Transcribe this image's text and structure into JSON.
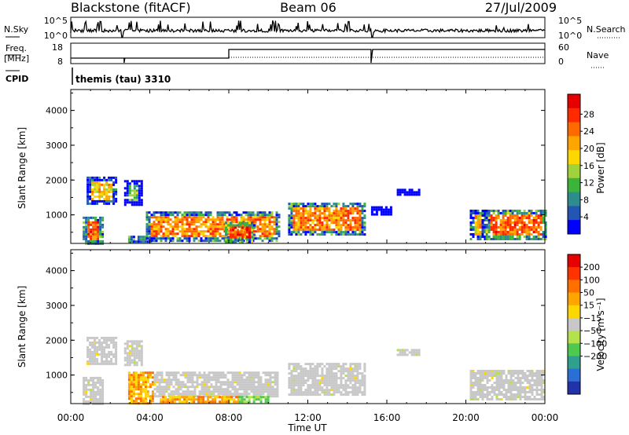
{
  "header": {
    "site": "Blackstone (fitACF)",
    "beam": "Beam 06",
    "date": "27/Jul/2009"
  },
  "param_panels": {
    "nsky_label": "N.Sky",
    "nsky_ticks": [
      "10^5",
      "10^0"
    ],
    "nsearch_label": "N.Search",
    "nsearch_ticks": [
      "10^5",
      "10^0"
    ],
    "freq_label": "Freq.",
    "freq_unit": "[MHz]",
    "freq_ticks": [
      "18",
      "8"
    ],
    "nave_label": "Nave",
    "nave_ticks": [
      "60",
      "0"
    ],
    "cpid_label": "CPID",
    "cpid_value": "themis (tau) 3310"
  },
  "chart_data": [
    {
      "type": "heatmap",
      "name": "power",
      "ylabel": "Slant Range [km]",
      "ylim": [
        180,
        4600
      ],
      "yticks": [
        "1000",
        "2000",
        "3000",
        "4000"
      ],
      "xlim_hours": [
        0,
        24
      ],
      "colorbar": {
        "label": "Power [dB]",
        "ticks": [
          "4",
          "8",
          "12",
          "16",
          "20",
          "24",
          "28"
        ],
        "colors": [
          "#0000ff",
          "#2255b4",
          "#2e8c8c",
          "#3cb43c",
          "#a0d23c",
          "#ffd700",
          "#ffa500",
          "#ff6a00",
          "#ff2a00",
          "#e60000"
        ]
      },
      "regions": [
        {
          "t0": 0.6,
          "t1": 1.6,
          "r0": 200,
          "r1": 950,
          "p": 24
        },
        {
          "t0": 0.8,
          "t1": 2.3,
          "r0": 1300,
          "r1": 2100,
          "p": 18
        },
        {
          "t0": 2.7,
          "t1": 3.6,
          "r0": 1300,
          "r1": 2000,
          "p": 12
        },
        {
          "t0": 2.9,
          "t1": 4.0,
          "r0": 200,
          "r1": 400,
          "p": 22
        },
        {
          "t0": 3.8,
          "t1": 10.5,
          "r0": 250,
          "r1": 1100,
          "p": 22
        },
        {
          "t0": 7.8,
          "t1": 9.3,
          "r0": 250,
          "r1": 800,
          "p": 26
        },
        {
          "t0": 11.0,
          "t1": 14.9,
          "r0": 450,
          "r1": 1350,
          "p": 22
        },
        {
          "t0": 15.2,
          "t1": 16.2,
          "r0": 1000,
          "r1": 1250,
          "p": 6
        },
        {
          "t0": 16.5,
          "t1": 17.6,
          "r0": 1550,
          "r1": 1750,
          "p": 6
        },
        {
          "t0": 20.2,
          "t1": 21.0,
          "r0": 300,
          "r1": 1150,
          "p": 18
        },
        {
          "t0": 21.0,
          "t1": 24.0,
          "r0": 300,
          "r1": 1150,
          "p": 24
        }
      ]
    },
    {
      "type": "heatmap",
      "name": "velocity",
      "ylabel": "Slant Range [km]",
      "ylim": [
        180,
        4600
      ],
      "yticks": [
        "1000",
        "2000",
        "3000",
        "4000"
      ],
      "xlabel": "Time UT",
      "xticks": [
        "00:00",
        "04:00",
        "08:00",
        "12:00",
        "16:00",
        "20:00",
        "00:00"
      ],
      "xlim_hours": [
        0,
        24
      ],
      "colorbar": {
        "label": "Velocity [m s⁻¹]",
        "ticks": [
          "200",
          "100",
          "50",
          "15",
          "−15",
          "−50",
          "−100",
          "−200"
        ],
        "colors": [
          "#2233aa",
          "#2b6ed6",
          "#2fa090",
          "#4fc84f",
          "#b4e24c",
          "#c8c8c8",
          "#ffd700",
          "#ffa500",
          "#ff7000",
          "#ff3300",
          "#e60000"
        ]
      },
      "regions": [
        {
          "t0": 0.6,
          "t1": 1.6,
          "r0": 200,
          "r1": 950,
          "v": 0
        },
        {
          "t0": 0.8,
          "t1": 2.3,
          "r0": 1300,
          "r1": 2100,
          "v": 0
        },
        {
          "t0": 2.7,
          "t1": 3.6,
          "r0": 1300,
          "r1": 2000,
          "v": 0
        },
        {
          "t0": 2.9,
          "t1": 4.2,
          "r0": 200,
          "r1": 1100,
          "v": -60
        },
        {
          "t0": 4.2,
          "t1": 10.5,
          "r0": 400,
          "r1": 1100,
          "v": 0
        },
        {
          "t0": 4.5,
          "t1": 8.5,
          "r0": 200,
          "r1": 400,
          "v": -80
        },
        {
          "t0": 8.5,
          "t1": 10.0,
          "r0": 200,
          "r1": 400,
          "v": 60
        },
        {
          "t0": 11.0,
          "t1": 14.9,
          "r0": 450,
          "r1": 1350,
          "v": 0
        },
        {
          "t0": 16.5,
          "t1": 17.6,
          "r0": 1550,
          "r1": 1750,
          "v": 0
        },
        {
          "t0": 20.2,
          "t1": 24.0,
          "r0": 300,
          "r1": 1150,
          "v": 0
        }
      ]
    }
  ]
}
